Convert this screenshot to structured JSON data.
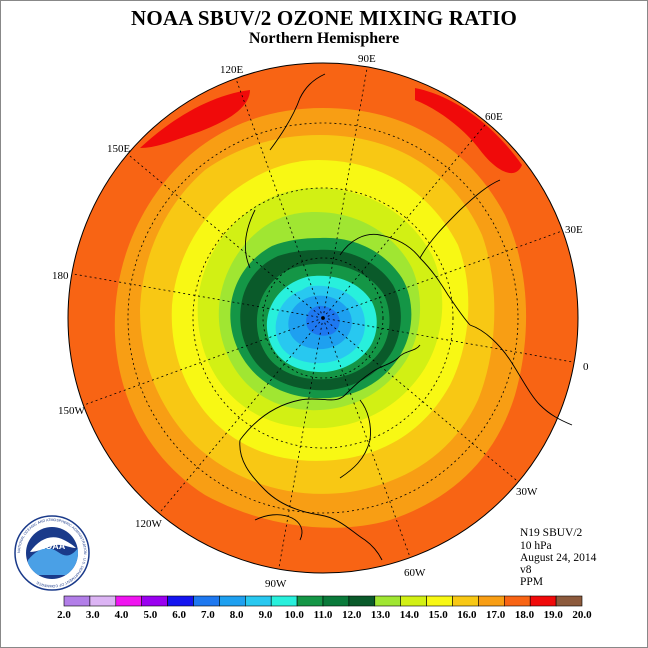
{
  "title": "NOAA SBUV/2 OZONE MIXING RATIO",
  "subtitle": "Northern Hemisphere",
  "longitude_labels": [
    "90E",
    "60E",
    "30E",
    "0",
    "30W",
    "60W",
    "90W",
    "120W",
    "150W",
    "180",
    "150E",
    "120E"
  ],
  "info": {
    "instrument": "N19 SBUV/2",
    "level": "10 hPa",
    "date": "August 24, 2014",
    "version": "v8",
    "units": "PPM"
  },
  "logo_text": "NOAA",
  "logo_ring_text": "NATIONAL OCEANIC AND ATMOSPHERIC ADMINISTRATION · U.S. DEPARTMENT OF COMMERCE",
  "colorbar": {
    "ticks": [
      "2.0",
      "3.0",
      "4.0",
      "5.0",
      "6.0",
      "7.0",
      "8.0",
      "9.0",
      "10.0",
      "11.0",
      "12.0",
      "13.0",
      "14.0",
      "15.0",
      "16.0",
      "17.0",
      "18.0",
      "19.0",
      "20.0"
    ],
    "colors": [
      "#b27ee8",
      "#dcb4f4",
      "#f014f0",
      "#9a00f0",
      "#1414f0",
      "#1e78f0",
      "#1ea0f0",
      "#28c8f0",
      "#28f0dc",
      "#149646",
      "#0a7a3a",
      "#0a5a2a",
      "#a0e632",
      "#d2f014",
      "#f8f814",
      "#f8c814",
      "#f89e14",
      "#f86414",
      "#f00a0a",
      "#8c5a3c"
    ]
  },
  "contour_colors": {
    "c18": "#f86414",
    "c17": "#f89e14",
    "c16": "#f8c814",
    "c15": "#f8f814",
    "c14": "#d2f014",
    "c13": "#a0e632",
    "c12": "#149646",
    "c11": "#0a5a2a",
    "c10": "#149646",
    "c9": "#28f0dc",
    "c8": "#28c8f0",
    "c7": "#1ea0f0",
    "c6": "#1e78f0",
    "c19": "#f00a0a"
  }
}
